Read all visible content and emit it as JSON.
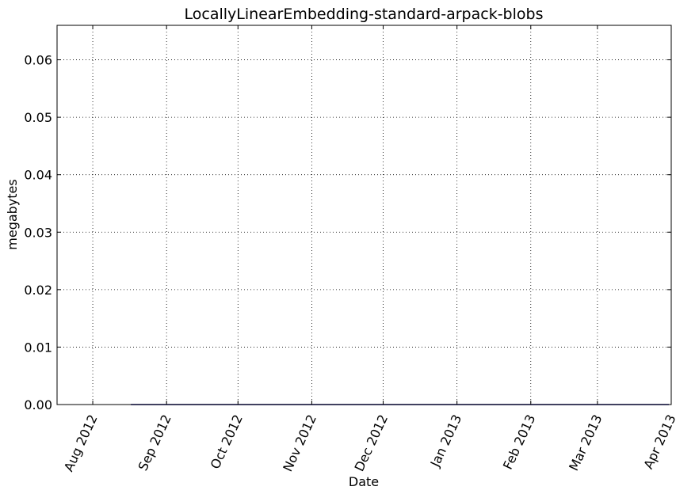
{
  "chart_data": {
    "type": "line",
    "title": "LocallyLinearEmbedding-standard-arpack-blobs",
    "xlabel": "Date",
    "ylabel": "megabytes",
    "x_ticks": [
      "Aug 2012",
      "Sep 2012",
      "Oct 2012",
      "Nov 2012",
      "Dec 2012",
      "Jan 2013",
      "Feb 2013",
      "Mar 2013",
      "Apr 2013"
    ],
    "x_tick_dates": [
      "2012-08-01",
      "2012-09-01",
      "2012-10-01",
      "2012-11-01",
      "2012-12-01",
      "2013-01-01",
      "2013-02-01",
      "2013-03-01",
      "2013-04-01"
    ],
    "xlim": [
      "2012-07-17",
      "2013-04-01"
    ],
    "y_ticks": [
      "0.00",
      "0.01",
      "0.02",
      "0.03",
      "0.04",
      "0.05",
      "0.06"
    ],
    "ylim": [
      0,
      0.066
    ],
    "grid": true,
    "series": [
      {
        "color": "#000080",
        "x": [
          "2012-08-17",
          "2013-03-31"
        ],
        "values": [
          0.0,
          0.0
        ]
      }
    ]
  }
}
